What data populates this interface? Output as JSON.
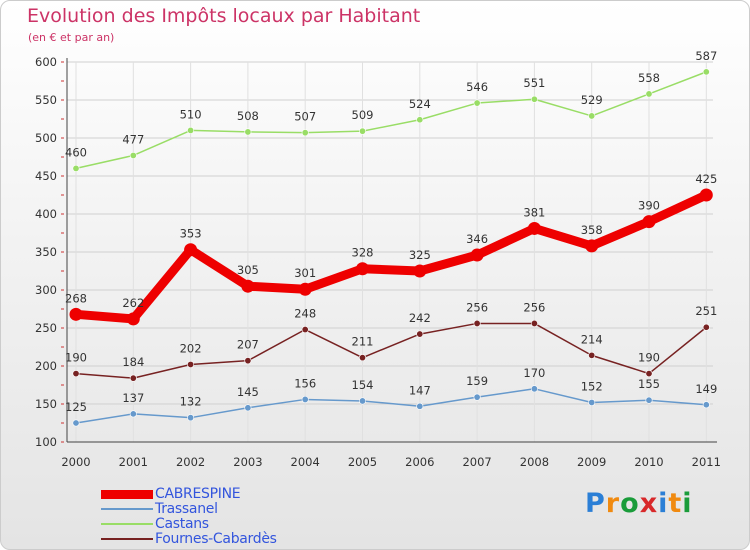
{
  "title": "Evolution des Impôts locaux par Habitant",
  "subtitle": "(en € et par an)",
  "logo": {
    "letters": [
      "P",
      "r",
      "o",
      "x",
      "i",
      "t",
      "i"
    ],
    "colors": [
      "#2b7fd6",
      "#f08a10",
      "#1a9c3a",
      "#d8282a",
      "#2b7fd6",
      "#f08a10",
      "#1a9c3a"
    ]
  },
  "chart_data": {
    "type": "line",
    "x": [
      "2000",
      "2001",
      "2002",
      "2003",
      "2004",
      "2005",
      "2006",
      "2007",
      "2008",
      "2009",
      "2010",
      "2011"
    ],
    "ylim": [
      100,
      600
    ],
    "yticks": [
      100,
      150,
      200,
      250,
      300,
      350,
      400,
      450,
      500,
      550,
      600
    ],
    "grid": true,
    "legend_position": "bottom-left",
    "series": [
      {
        "name": "CABRESPINE",
        "color": "#ee0000",
        "values": [
          268,
          262,
          353,
          305,
          301,
          328,
          325,
          346,
          381,
          358,
          390,
          425
        ]
      },
      {
        "name": "Trassanel",
        "color": "#6699cc",
        "values": [
          125,
          137,
          132,
          145,
          156,
          154,
          147,
          159,
          170,
          152,
          155,
          149
        ]
      },
      {
        "name": "Castans",
        "color": "#99dd66",
        "values": [
          460,
          477,
          510,
          508,
          507,
          509,
          524,
          546,
          551,
          529,
          558,
          587
        ]
      },
      {
        "name": "Fournes-Cabardès",
        "color": "#772222",
        "values": [
          190,
          184,
          202,
          207,
          248,
          211,
          242,
          256,
          256,
          214,
          190,
          251
        ]
      }
    ]
  }
}
